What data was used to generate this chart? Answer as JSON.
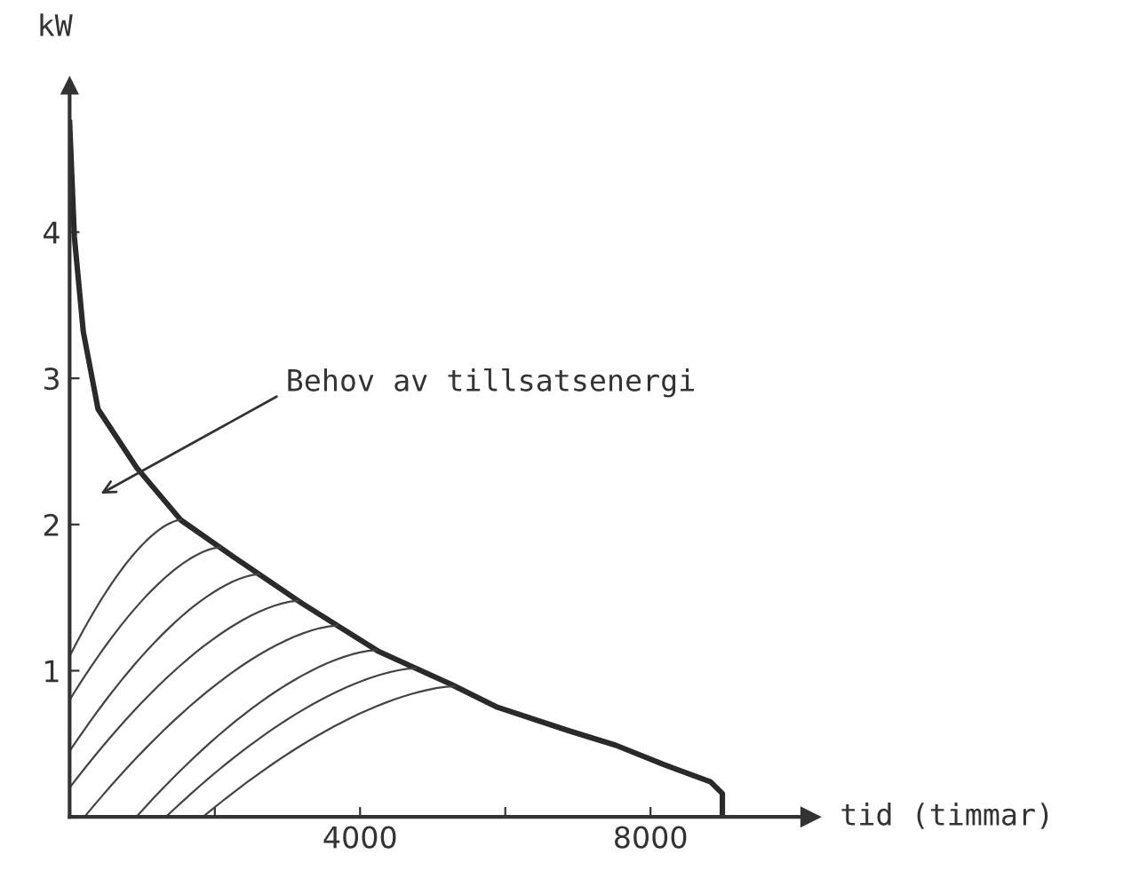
{
  "chart_data": {
    "type": "line",
    "xlabel": "tid (timmar)",
    "ylabel": "kW",
    "x": [
      0,
      65,
      188,
      391,
      922,
      1533,
      2225,
      3203,
      4262,
      5240,
      5892,
      6870,
      7523,
      8174,
      8826,
      8990,
      8990
    ],
    "series": [
      {
        "color": "#2a2a2a",
        "values": [
          4.75,
          3.97,
          3.32,
          2.79,
          2.39,
          2.03,
          1.79,
          1.46,
          1.13,
          0.91,
          0.75,
          0.59,
          0.49,
          0.36,
          0.24,
          0.16,
          0
        ]
      }
    ],
    "xlim": [
      0,
      10200
    ],
    "ylim": [
      0,
      5
    ],
    "xticks": [
      {
        "value": 2000,
        "label": null
      },
      4000,
      {
        "value": 6000,
        "label": null
      },
      8000
    ],
    "yticks": [
      1,
      2,
      3,
      4
    ],
    "grid": false,
    "legend": false,
    "marker": "none",
    "line_style": "solid",
    "annotations": [
      "Behov av tillsatsenergi"
    ]
  }
}
